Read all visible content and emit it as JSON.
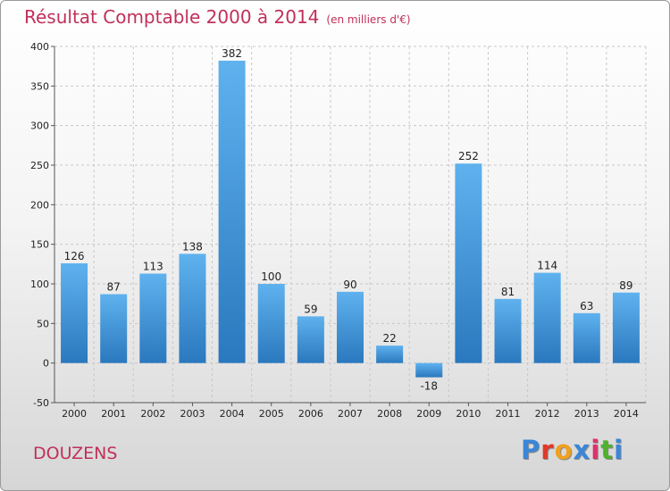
{
  "header": {
    "title": "Résultat Comptable 2000 à 2014",
    "subtitle": "(en milliers d'€)"
  },
  "footer": {
    "town": "DOUZENS",
    "logo": [
      "P",
      "r",
      "o",
      "x",
      "i",
      "t",
      "i"
    ],
    "logo_colors": [
      "#3a86d8",
      "#e03a2a",
      "#f0a020",
      "#3a86d8",
      "#e0306a",
      "#50b030",
      "#3a86d8"
    ]
  },
  "colors": {
    "bar_top": "#5fb2ee",
    "bar_bottom": "#2a78be",
    "title": "#c0305a"
  },
  "chart_data": {
    "type": "bar",
    "title": "Résultat Comptable 2000 à 2014",
    "categories": [
      "2000",
      "2001",
      "2002",
      "2003",
      "2004",
      "2005",
      "2006",
      "2007",
      "2008",
      "2009",
      "2010",
      "2011",
      "2012",
      "2013",
      "2014"
    ],
    "values": [
      126,
      87,
      113,
      138,
      382,
      100,
      59,
      90,
      22,
      -18,
      252,
      81,
      114,
      63,
      89
    ],
    "ylim": [
      -50,
      400
    ],
    "yticks": [
      -50,
      0,
      50,
      100,
      150,
      200,
      250,
      300,
      350,
      400
    ],
    "grid": true
  }
}
